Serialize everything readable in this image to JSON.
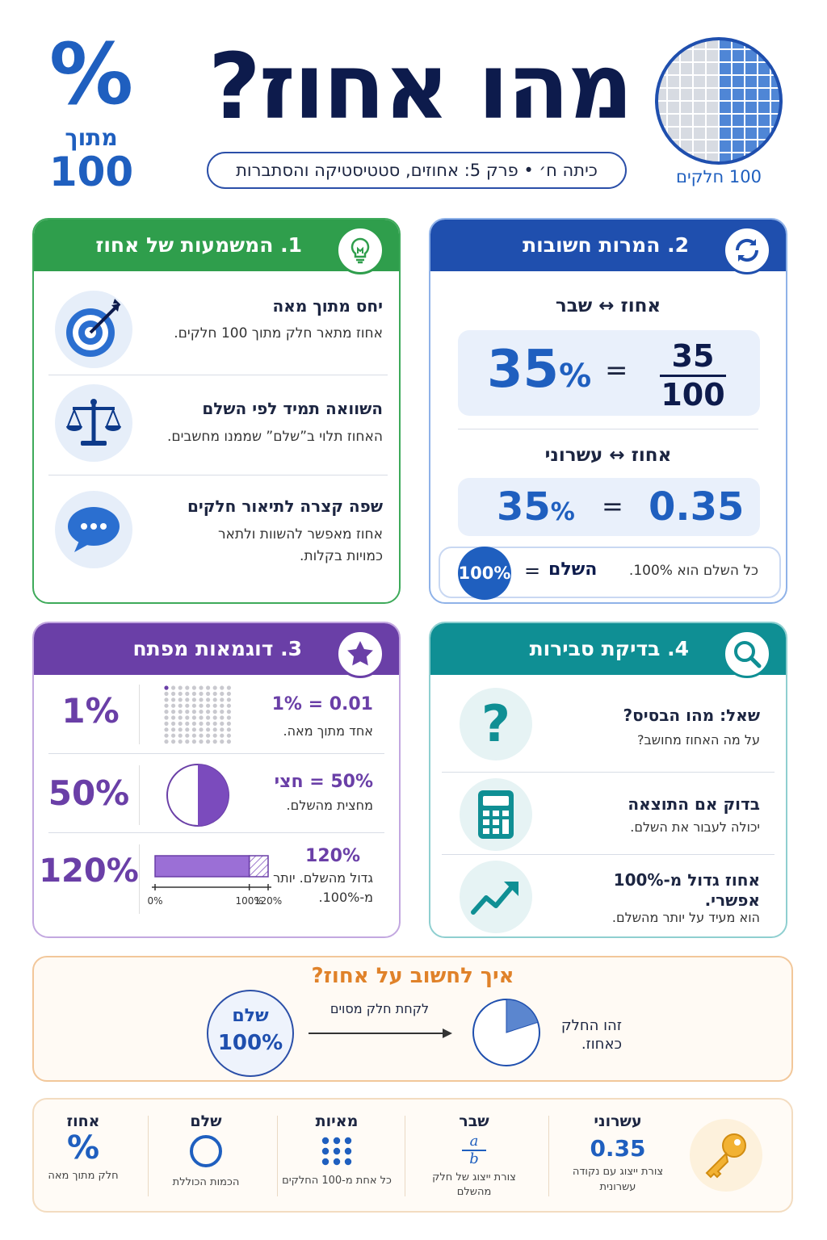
{
  "header": {
    "title": "מהו אחוז?",
    "subtitle": "כיתה ח׳ • פרק 5: אחוזים, סטטיסטיקה והסתברות",
    "percent_symbol": "%",
    "percent_of": "מתוך",
    "percent_hundred": "100",
    "grid_caption": "100 חלקים",
    "grid_filled_fraction": 0.5
  },
  "card1": {
    "heading": "1. המשמעות של אחוז",
    "items": [
      {
        "title": "יחס מתוך מאה",
        "desc": "אחוז מתאר חלק מתוך 100 חלקים.",
        "icon": "target-icon"
      },
      {
        "title": "השוואה תמיד לפי השלם",
        "desc": "האחוז תלוי ב”שלם” שממנו מחשבים.",
        "icon": "scale-icon"
      },
      {
        "title": "שפה קצרה לתיאור חלקים",
        "desc": "אחוז מאפשר להשוות ולתאר כמויות בקלות.",
        "icon": "speech-bubble-icon"
      }
    ]
  },
  "card2": {
    "heading": "2. המרות חשובות",
    "conv1_label_a": "אחוז",
    "conv1_label_b": "שבר",
    "arrow": "↔",
    "conv1_percent": "35",
    "pct_sign": "%",
    "equals": "=",
    "conv1_numerator": "35",
    "conv1_denominator": "100",
    "conv2_label_a": "אחוז",
    "conv2_label_b": "עשרוני",
    "conv2_percent": "35",
    "conv2_decimal": "0.35",
    "whole_badge": "100%",
    "whole_word": "השלם",
    "whole_note": "כל השלם הוא 100%."
  },
  "card3": {
    "heading": "3. דוגמאות מפתח",
    "examples": [
      {
        "big": "1%",
        "eq": "1% = 0.01",
        "desc": "אחד מתוך מאה."
      },
      {
        "big": "50%",
        "eq": "50% = חצי",
        "desc": "מחצית מהשלם."
      },
      {
        "big": "120%",
        "eq": "120%",
        "desc": "גדול מהשלם. יותר מ-100%."
      }
    ],
    "dots_filled": 1,
    "dots_total": 100,
    "pie_fraction": 0.5,
    "bar_value": 120,
    "bar_max": 120,
    "bar_ticks": [
      "0%",
      "100%",
      "120%"
    ]
  },
  "card4": {
    "heading": "4. בדיקת סבירות",
    "items": [
      {
        "title": "שאל: מהו הבסיס?",
        "desc": "על מה האחוז מחושב?",
        "icon": "question-mark-icon"
      },
      {
        "title": "בדוק אם התוצאה",
        "desc": "יכולה לעבור את השלם.",
        "icon": "calculator-icon"
      },
      {
        "title": "אחוז גדול מ-100% אפשרי.",
        "desc": "הוא מעיד על יותר מהשלם.",
        "icon": "trend-up-icon"
      }
    ]
  },
  "howto": {
    "title": "איך לחשוב על אחוז?",
    "whole_word": "שלם",
    "whole_value": "100%",
    "arrow_text": "לקחת חלק מסוים",
    "result_text": "זהו החלק כאחוז.",
    "pie_fraction": 0.2
  },
  "glossary": [
    {
      "title": "עשרוני",
      "value": "0.35",
      "desc": "צורת ייצוג עם נקודה עשרונית",
      "icon": "decimal-icon"
    },
    {
      "title": "שבר",
      "numerator": "a",
      "denominator": "b",
      "desc": "צורת ייצוג של חלק מהשלם",
      "icon": "fraction-icon"
    },
    {
      "title": "מאיות",
      "desc": "כל אחת מ-100 החלקים",
      "icon": "dots-grid-icon"
    },
    {
      "title": "שלם",
      "desc": "הכמות הכוללת",
      "icon": "circle-icon"
    },
    {
      "title": "אחוז",
      "value": "%",
      "desc": "חלק מתוך מאה",
      "icon": "percent-icon"
    }
  ],
  "colors": {
    "navy": "#0d1b4c",
    "blue": "#1f5fbf",
    "green": "#2f9e4c",
    "purple": "#6a3fa7",
    "teal": "#0f8f94",
    "orange": "#e0822a"
  }
}
